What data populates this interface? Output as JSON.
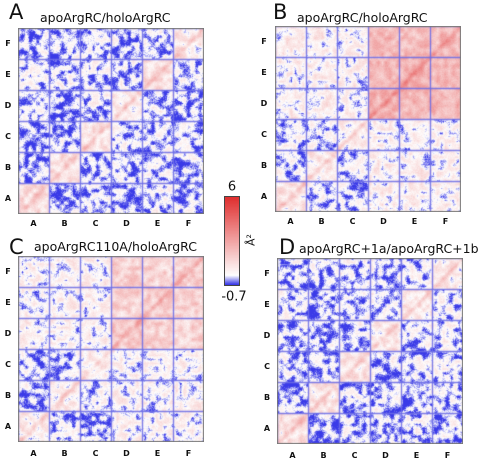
{
  "colorbar": {
    "max_label": "6",
    "min_label": "-0.7",
    "unit_label": "Å²",
    "high_color": "#e03030",
    "mid_color": "#ffffff",
    "low_color": "#3a3ae8"
  },
  "chart_data": [
    {
      "type": "heatmap",
      "panel": "A",
      "title": "apoArgRC/holoArgRC",
      "x_tick_labels": [
        "A",
        "B",
        "C",
        "D",
        "E",
        "F"
      ],
      "y_tick_labels": [
        "A",
        "B",
        "C",
        "D",
        "E",
        "F"
      ],
      "value_range": [
        -0.7,
        6
      ],
      "block_mean": [
        [
          0.9,
          -0.3,
          -0.2,
          -0.2,
          -0.1,
          -0.2
        ],
        [
          -0.3,
          0.8,
          -0.2,
          -0.2,
          -0.1,
          -0.2
        ],
        [
          -0.2,
          -0.2,
          0.8,
          -0.1,
          -0.1,
          -0.2
        ],
        [
          -0.2,
          -0.2,
          -0.1,
          0.6,
          -0.1,
          -0.2
        ],
        [
          -0.1,
          -0.1,
          -0.1,
          -0.1,
          0.8,
          -0.1
        ],
        [
          -0.2,
          -0.2,
          -0.2,
          -0.2,
          -0.1,
          0.5
        ]
      ]
    },
    {
      "type": "heatmap",
      "panel": "B",
      "title": "apoArgRC/holoArgRC",
      "x_tick_labels": [
        "A",
        "B",
        "C",
        "D",
        "E",
        "F"
      ],
      "y_tick_labels": [
        "A",
        "B",
        "C",
        "D",
        "E",
        "F"
      ],
      "value_range": [
        -0.7,
        6
      ],
      "block_mean": [
        [
          0.6,
          -0.1,
          -0.1,
          0.3,
          0.3,
          0.3
        ],
        [
          -0.1,
          0.5,
          -0.1,
          0.3,
          0.3,
          0.3
        ],
        [
          -0.1,
          -0.1,
          0.3,
          0.2,
          0.2,
          0.2
        ],
        [
          0.3,
          0.3,
          0.2,
          2.2,
          2.0,
          2.0
        ],
        [
          0.3,
          0.3,
          0.2,
          2.0,
          2.2,
          2.0
        ],
        [
          0.3,
          0.3,
          0.2,
          2.0,
          2.0,
          2.0
        ]
      ]
    },
    {
      "type": "heatmap",
      "panel": "C",
      "title": "apoArgRC110A/holoArgRC",
      "x_tick_labels": [
        "A",
        "B",
        "C",
        "D",
        "E",
        "F"
      ],
      "y_tick_labels": [
        "A",
        "B",
        "C",
        "D",
        "E",
        "F"
      ],
      "value_range": [
        -0.7,
        6
      ],
      "block_mean": [
        [
          0.4,
          -0.1,
          -0.2,
          0.2,
          0.1,
          0.1
        ],
        [
          -0.1,
          0.4,
          -0.1,
          0.2,
          0.2,
          0.2
        ],
        [
          -0.2,
          -0.1,
          0.3,
          0.2,
          0.2,
          0.2
        ],
        [
          0.2,
          0.2,
          0.2,
          1.5,
          1.3,
          1.3
        ],
        [
          0.1,
          0.2,
          0.2,
          1.3,
          1.5,
          1.3
        ],
        [
          0.1,
          0.2,
          0.2,
          1.3,
          1.3,
          1.4
        ]
      ]
    },
    {
      "type": "heatmap",
      "panel": "D",
      "title": "apoArgRC+1a/apoArgRC+1b",
      "x_tick_labels": [
        "A",
        "B",
        "C",
        "D",
        "E",
        "F"
      ],
      "y_tick_labels": [
        "A",
        "B",
        "C",
        "D",
        "E",
        "F"
      ],
      "value_range": [
        -0.7,
        6
      ],
      "block_mean": [
        [
          0.8,
          -0.3,
          -0.2,
          -0.2,
          -0.1,
          -0.2
        ],
        [
          -0.3,
          0.7,
          -0.2,
          -0.2,
          -0.2,
          -0.2
        ],
        [
          -0.2,
          -0.2,
          0.7,
          -0.1,
          -0.1,
          -0.1
        ],
        [
          -0.2,
          -0.2,
          -0.1,
          0.5,
          -0.1,
          -0.1
        ],
        [
          -0.1,
          -0.2,
          -0.1,
          -0.1,
          0.6,
          -0.1
        ],
        [
          -0.2,
          -0.2,
          -0.1,
          -0.1,
          -0.1,
          0.4
        ]
      ]
    }
  ]
}
